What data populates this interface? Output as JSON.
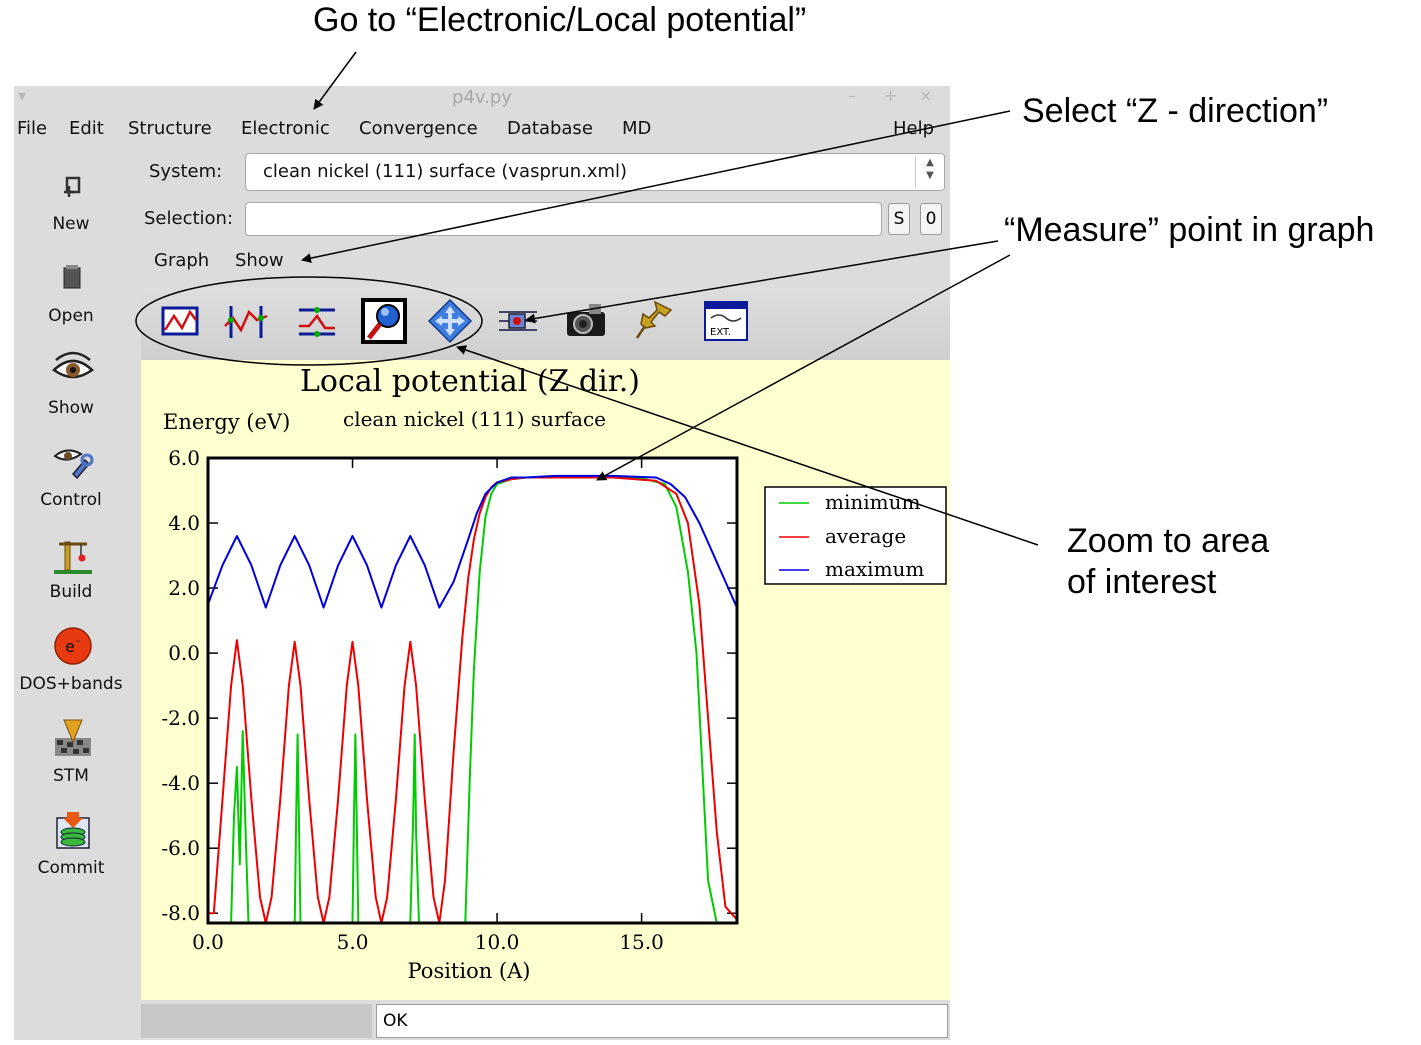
{
  "annotations": {
    "electronic": "Go to “Electronic/Local potential”",
    "zdirection": "Select “Z - direction”",
    "measure": "“Measure” point in graph",
    "zoom_line1": "Zoom to area",
    "zoom_line2": "of interest"
  },
  "window": {
    "title": "p4v.py",
    "controls": {
      "minimize": "–",
      "maximize": "+",
      "close": "×"
    }
  },
  "menubar": [
    "File",
    "Edit",
    "Structure",
    "Electronic",
    "Convergence",
    "Database",
    "MD",
    "Help"
  ],
  "sidebar": [
    {
      "label": "New",
      "icon": "new-icon"
    },
    {
      "label": "Open",
      "icon": "open-icon"
    },
    {
      "label": "Show",
      "icon": "eye-icon"
    },
    {
      "label": "Control",
      "icon": "control-icon"
    },
    {
      "label": "Build",
      "icon": "crane-icon"
    },
    {
      "label": "DOS+bands",
      "icon": "electron-icon"
    },
    {
      "label": "STM",
      "icon": "stm-icon"
    },
    {
      "label": "Commit",
      "icon": "commit-icon"
    }
  ],
  "form": {
    "system_label": "System:",
    "system_value": "clean nickel (111) surface (vasprun.xml)",
    "selection_label": "Selection:",
    "selection_value": "",
    "s_button": "S",
    "zero_button": "0"
  },
  "submenu": [
    "Graph",
    "Show"
  ],
  "toolbar_icons": [
    "graph-icon",
    "measure-icon",
    "range-icon",
    "zoom-icon",
    "pan-icon",
    "settings-icon",
    "camera-icon",
    "pin-icon",
    "export-icon"
  ],
  "export_icon_text": "EXT.",
  "status": "OK",
  "colors": {
    "minimum": "#00cc00",
    "average": "#ee0000",
    "maximum": "#0000dd",
    "plot_bg": "#ffffd0"
  },
  "chart_data": {
    "type": "line",
    "title": "Local potential (Z dir.)",
    "subtitle": "clean nickel (111) surface",
    "ylabel": "Energy (eV)",
    "xlabel": "Position (A)",
    "xlim": [
      0,
      18.3
    ],
    "ylim": [
      -8.3,
      6.0
    ],
    "xticks": [
      "0.0",
      "5.0",
      "10.0",
      "15.0"
    ],
    "yticks": [
      "6.0",
      "4.0",
      "2.0",
      "0.0",
      "-2.0",
      "-4.0",
      "-6.0",
      "-8.0"
    ],
    "legend_position": "right",
    "grid": false,
    "series": [
      {
        "name": "minimum",
        "x": [
          0.0,
          0.8,
          0.9,
          1.0,
          1.1,
          1.2,
          1.3,
          1.4,
          3.0,
          3.05,
          3.1,
          3.15,
          3.2,
          5.0,
          5.05,
          5.1,
          5.15,
          5.2,
          7.0,
          7.1,
          7.15,
          7.2,
          7.3,
          8.9,
          9.05,
          9.2,
          9.4,
          9.6,
          9.8,
          10.0,
          10.5,
          11.0,
          12.0,
          13.0,
          14.0,
          15.0,
          15.8,
          16.2,
          16.6,
          16.9,
          17.1,
          17.3,
          17.6,
          18.3
        ],
        "y": [
          -8.3,
          -8.3,
          -5.0,
          -3.5,
          -6.5,
          -2.4,
          -5.5,
          -8.3,
          -8.3,
          -5.0,
          -2.5,
          -5.5,
          -8.3,
          -8.3,
          -5.0,
          -2.5,
          -5.5,
          -8.3,
          -8.3,
          -5.0,
          -2.5,
          -5.5,
          -8.3,
          -8.3,
          -4.0,
          -0.5,
          2.5,
          4.2,
          4.9,
          5.2,
          5.35,
          5.4,
          5.4,
          5.4,
          5.4,
          5.38,
          5.2,
          4.5,
          2.5,
          0.0,
          -3.5,
          -7.0,
          -8.3,
          -8.3
        ]
      },
      {
        "name": "average",
        "x": [
          0.0,
          0.2,
          0.5,
          0.8,
          1.0,
          1.2,
          1.5,
          1.8,
          2.0,
          2.2,
          2.5,
          2.8,
          3.0,
          3.2,
          3.5,
          3.8,
          4.0,
          4.2,
          4.5,
          4.8,
          5.0,
          5.2,
          5.5,
          5.8,
          6.0,
          6.2,
          6.5,
          6.8,
          7.0,
          7.2,
          7.5,
          7.8,
          8.0,
          8.2,
          8.5,
          8.8,
          9.0,
          9.2,
          9.4,
          9.6,
          9.8,
          10.0,
          10.5,
          11.0,
          12.0,
          14.0,
          15.5,
          16.2,
          16.6,
          17.0,
          17.3,
          17.6,
          17.9,
          18.3
        ],
        "y": [
          -8.0,
          -8.0,
          -4.5,
          -1.0,
          0.4,
          -1.0,
          -4.5,
          -7.5,
          -8.3,
          -7.5,
          -4.5,
          -1.0,
          0.35,
          -1.0,
          -4.5,
          -7.5,
          -8.3,
          -7.5,
          -4.5,
          -1.0,
          0.35,
          -1.0,
          -4.5,
          -7.5,
          -8.3,
          -7.5,
          -4.5,
          -1.0,
          0.35,
          -1.0,
          -4.5,
          -7.5,
          -8.3,
          -7.0,
          -3.0,
          0.5,
          2.3,
          3.5,
          4.3,
          4.8,
          5.1,
          5.25,
          5.35,
          5.4,
          5.4,
          5.4,
          5.3,
          4.9,
          4.0,
          1.5,
          -2.0,
          -5.5,
          -7.8,
          -8.2
        ]
      },
      {
        "name": "maximum",
        "x": [
          0.0,
          0.5,
          1.0,
          1.5,
          2.0,
          2.5,
          3.0,
          3.5,
          4.0,
          4.5,
          5.0,
          5.5,
          6.0,
          6.5,
          7.0,
          7.5,
          8.0,
          8.5,
          9.0,
          9.3,
          9.6,
          10.0,
          10.5,
          11.0,
          12.0,
          14.0,
          15.5,
          16.0,
          16.5,
          17.0,
          17.5,
          18.0,
          18.3
        ],
        "y": [
          1.5,
          2.7,
          3.6,
          2.7,
          1.4,
          2.7,
          3.6,
          2.7,
          1.4,
          2.7,
          3.6,
          2.7,
          1.4,
          2.7,
          3.6,
          2.7,
          1.4,
          2.2,
          3.5,
          4.3,
          4.9,
          5.25,
          5.4,
          5.4,
          5.45,
          5.45,
          5.4,
          5.2,
          4.8,
          4.0,
          3.0,
          2.0,
          1.4
        ]
      }
    ]
  }
}
